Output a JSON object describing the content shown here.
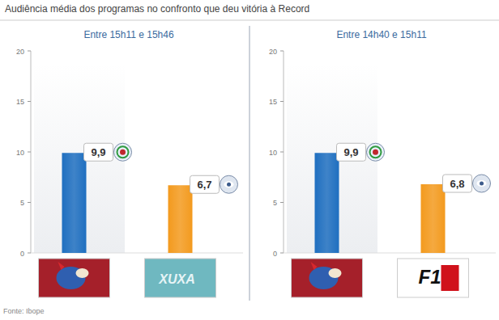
{
  "title": "Audiência média dos programas no confronto que deu vitória à Record",
  "source": "Fonte: Ibope",
  "chart_data": [
    {
      "type": "bar",
      "title": "Entre 15h11 e 15h46",
      "categories": [
        null,
        "XUXA"
      ],
      "values": [
        9.9,
        6.7
      ],
      "value_labels": [
        "9,9",
        "6,7"
      ],
      "colors": [
        "#1f6fc0",
        "#f39a1e"
      ],
      "ylim": [
        0,
        20
      ],
      "yticks": [
        0,
        5,
        10,
        15,
        20
      ],
      "grid": false,
      "data_labels": true
    },
    {
      "type": "bar",
      "title": "Entre 14h40 e 15h11",
      "categories": [
        null,
        "F1"
      ],
      "values": [
        9.9,
        6.8
      ],
      "value_labels": [
        "9,9",
        "6,8"
      ],
      "colors": [
        "#1f6fc0",
        "#f39a1e"
      ],
      "ylim": [
        0,
        20
      ],
      "yticks": [
        0,
        5,
        10,
        15,
        20
      ],
      "grid": false,
      "data_labels": true
    }
  ]
}
